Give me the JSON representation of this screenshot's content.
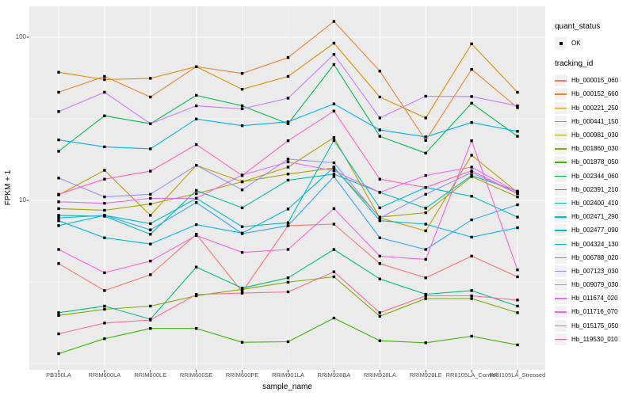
{
  "figure": {
    "background": "#FFFFFF",
    "panel_background": "#EBEBEB",
    "gridline_color": "#FFFFFF",
    "tick_color": "#333333",
    "axis_text_color": "#4D4D4D",
    "point_marker": {
      "shape": "black-square",
      "color": "#000000"
    }
  },
  "axes": {
    "x": {
      "title": "sample_name",
      "categories": [
        "PB350LA",
        "RRIM600LA",
        "RRIM600LE",
        "RRIM600SE",
        "RRIM600PE",
        "RRIM901LA",
        "RRIM928BA",
        "RRIM928LA",
        "RRIM928LE",
        "RRII105LA_Control",
        "RRII105LA_Stressed"
      ]
    },
    "y": {
      "title": "FPKM + 1",
      "scale": "log10",
      "tick_labels": [
        "100",
        "10"
      ],
      "tick_values": [
        100,
        10
      ],
      "minor_gridline_values": [
        1,
        3.162,
        31.62
      ],
      "range": [
        0.92,
        155
      ]
    }
  },
  "legend": {
    "quant_status": {
      "title": "quant_status",
      "items": [
        {
          "label": "OK",
          "marker": "black-square-point"
        }
      ]
    },
    "tracking_id": {
      "title": "tracking_id"
    }
  },
  "chart_data": {
    "type": "line",
    "x": [
      "PB350LA",
      "RRIM600LA",
      "RRIM600LE",
      "RRIM600SE",
      "RRIM600PE",
      "RRIM901LA",
      "RRIM928BA",
      "RRIM928LA",
      "RRIM928LE",
      "RRII105LA_Control",
      "RRII105LA_Stressed"
    ],
    "xlabel": "sample_name",
    "ylabel": "FPKM + 1",
    "y_scale": "log10",
    "ylim": [
      0.92,
      155
    ],
    "grid": true,
    "legend_position": "right",
    "points": "every vertex marked with small black square (quant_status = OK)",
    "series": [
      {
        "tracking_id": "Hb_000015_060",
        "color": "#F8766D",
        "values": [
          4.1,
          2.8,
          3.5,
          6.2,
          2.75,
          7.0,
          7.15,
          4.1,
          3.35,
          4.55,
          3.4
        ]
      },
      {
        "tracking_id": "Hb_000152_660",
        "color": "#EA8331",
        "values": [
          46,
          57.5,
          43,
          66,
          60,
          75,
          125,
          62,
          23.3,
          63.5,
          37
        ]
      },
      {
        "tracking_id": "Hb_000221_250",
        "color": "#D89000",
        "values": [
          61,
          55,
          56,
          66,
          48,
          57.5,
          92,
          43,
          32,
          91,
          46
        ]
      },
      {
        "tracking_id": "Hb_000441_150",
        "color": "#C09B00",
        "values": [
          10.8,
          15.3,
          8.1,
          16.4,
          13,
          16,
          24.3,
          7.8,
          6.5,
          18.9,
          11.2
        ]
      },
      {
        "tracking_id": "Hb_000981_030",
        "color": "#A3A500",
        "values": [
          8.9,
          8.7,
          9.5,
          11,
          13,
          14.5,
          15.8,
          7.9,
          8.4,
          14,
          10.5
        ]
      },
      {
        "tracking_id": "Hb_001860_030",
        "color": "#7CAE00",
        "values": [
          1.97,
          2.15,
          2.25,
          2.6,
          2.85,
          3.15,
          3.4,
          1.95,
          2.5,
          2.5,
          2.05
        ]
      },
      {
        "tracking_id": "Hb_001878_050",
        "color": "#39B600",
        "values": [
          1.15,
          1.42,
          1.64,
          1.64,
          1.35,
          1.36,
          1.9,
          1.38,
          1.34,
          1.47,
          1.3
        ]
      },
      {
        "tracking_id": "Hb_002344_060",
        "color": "#00BB4E",
        "values": [
          20,
          33,
          29.5,
          44,
          38,
          29.5,
          68,
          24.7,
          19.5,
          39.4,
          24.7
        ]
      },
      {
        "tracking_id": "Hb_002391_210",
        "color": "#00BF7D",
        "values": [
          2.05,
          2.25,
          1.87,
          3.9,
          2.9,
          3.35,
          5,
          3.3,
          2.66,
          2.8,
          2.25
        ]
      },
      {
        "tracking_id": "Hb_002400_410",
        "color": "#00C1A3",
        "values": [
          8.1,
          8,
          6.2,
          11.5,
          9,
          13.3,
          14.5,
          11.2,
          8.95,
          14.2,
          11.4
        ]
      },
      {
        "tracking_id": "Hb_002471_290",
        "color": "#00BFC4",
        "values": [
          7,
          8.1,
          7.2,
          10.3,
          6.9,
          7.3,
          23.3,
          9,
          12,
          10.6,
          7.9
        ]
      },
      {
        "tracking_id": "Hb_002477_090",
        "color": "#00BAE0",
        "values": [
          7.5,
          5.9,
          5.4,
          7.1,
          6.3,
          8.85,
          16,
          7.5,
          7.15,
          5.95,
          6.8
        ]
      },
      {
        "tracking_id": "Hb_004324_130",
        "color": "#00B0F6",
        "values": [
          23.5,
          21.3,
          20.7,
          31.5,
          28.7,
          30.3,
          39,
          27,
          24.5,
          30,
          26.5
        ]
      },
      {
        "tracking_id": "Hb_006788_020",
        "color": "#35A2FF",
        "values": [
          7.8,
          8.1,
          6.6,
          9.7,
          6.25,
          7,
          14,
          5.9,
          5,
          7.6,
          9.4
        ]
      },
      {
        "tracking_id": "Hb_007123_030",
        "color": "#9590FF",
        "values": [
          13.7,
          10.5,
          10.9,
          16.4,
          11.6,
          17.9,
          17,
          7.8,
          10.9,
          14.8,
          11
        ]
      },
      {
        "tracking_id": "Hb_009079_030",
        "color": "#C77CFF",
        "values": [
          35,
          46,
          29.5,
          38,
          36.4,
          42.3,
          78.5,
          32,
          43.5,
          43.3,
          38
        ]
      },
      {
        "tracking_id": "Hb_011674_020",
        "color": "#E76BF3",
        "values": [
          9.8,
          9.6,
          10.3,
          10.3,
          14.3,
          17.2,
          15.2,
          11.2,
          14.2,
          16,
          11.2
        ]
      },
      {
        "tracking_id": "Hb_011716_070",
        "color": "#FA62DB",
        "values": [
          5,
          3.6,
          4.25,
          6.1,
          4.8,
          5,
          8.9,
          4.55,
          4.35,
          23.2,
          3.75
        ]
      },
      {
        "tracking_id": "Hb_015175_050",
        "color": "#FF62BC",
        "values": [
          10.9,
          13.5,
          15.1,
          22,
          14.2,
          23.2,
          35.3,
          13.5,
          12,
          15.2,
          11
        ]
      },
      {
        "tracking_id": "Hb_119530_010",
        "color": "#FF6A98",
        "values": [
          1.52,
          1.77,
          1.85,
          2.65,
          2.7,
          2.75,
          3.65,
          2.05,
          2.6,
          2.6,
          2.45
        ]
      }
    ]
  }
}
